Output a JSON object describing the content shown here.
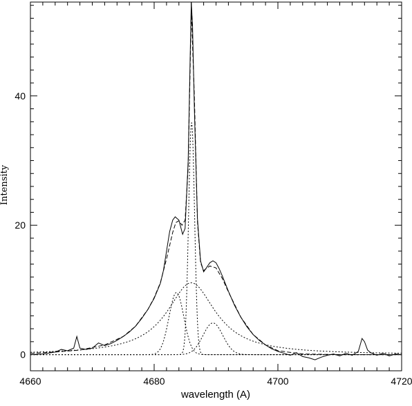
{
  "chart_data": {
    "type": "line",
    "title": "",
    "xlabel": "wavelength (A)",
    "ylabel": "Intensity",
    "xlim": [
      4660,
      4720
    ],
    "ylim": [
      -2.5,
      54.5
    ],
    "x_ticks": [
      4660,
      4680,
      4700,
      4720
    ],
    "x_tick_labels": [
      "4660",
      "4680",
      "4700",
      "4720"
    ],
    "y_ticks": [
      0,
      20,
      40
    ],
    "y_tick_labels": [
      "0",
      "20",
      "40"
    ],
    "x_minor_step": 2,
    "y_minor_step": 2,
    "grid": false,
    "legend": "none",
    "series": [
      {
        "style": "solid",
        "x": [
          4660,
          4662,
          4664,
          4665,
          4666,
          4667,
          4667.5,
          4668,
          4669,
          4670,
          4671,
          4672,
          4673,
          4674,
          4675,
          4676,
          4677,
          4678,
          4679,
          4680,
          4681,
          4681.5,
          4682,
          4682.5,
          4683,
          4683.4,
          4684,
          4684.6,
          4685,
          4685.5,
          4685.8,
          4686,
          4686.2,
          4686.5,
          4687,
          4687.5,
          4688,
          4688.5,
          4689,
          4689.5,
          4690,
          4690.5,
          4691,
          4692,
          4693,
          4694,
          4695,
          4696,
          4697,
          4698,
          4699,
          4700,
          4701,
          4702,
          4703,
          4704,
          4705,
          4706,
          4707,
          4708,
          4709,
          4710,
          4711,
          4712,
          4713,
          4713.6,
          4714,
          4714.5,
          4715,
          4716,
          4717,
          4718,
          4719,
          4720
        ],
        "y": [
          0.0,
          0.1,
          0.4,
          0.8,
          0.6,
          1.0,
          2.8,
          1.0,
          0.8,
          1.0,
          1.8,
          1.4,
          1.7,
          2.2,
          2.8,
          3.5,
          4.4,
          5.6,
          7.0,
          8.7,
          11.0,
          13.0,
          16.0,
          19.0,
          20.8,
          21.3,
          20.8,
          18.6,
          19.5,
          30.0,
          45.0,
          54.5,
          51.0,
          38.0,
          21.0,
          14.5,
          12.8,
          13.5,
          14.2,
          14.5,
          14.2,
          13.3,
          12.2,
          9.8,
          7.6,
          5.8,
          4.3,
          3.1,
          2.2,
          1.5,
          0.9,
          0.5,
          0.2,
          -0.1,
          0.3,
          -0.3,
          -0.5,
          -0.8,
          -0.4,
          -0.1,
          0.1,
          -0.2,
          0.2,
          -0.1,
          0.5,
          2.5,
          2.0,
          0.7,
          0.3,
          -0.1,
          0.2,
          -0.2,
          0.1,
          0.0
        ]
      },
      {
        "style": "dashed",
        "x": [
          4660,
          4664,
          4668,
          4672,
          4675,
          4677,
          4679,
          4680,
          4681,
          4682,
          4683,
          4683.5,
          4684,
          4684.5,
          4685,
          4685.5,
          4686,
          4686.5,
          4687,
          4687.5,
          4688,
          4689,
          4690,
          4691,
          4692,
          4694,
          4696,
          4698,
          4700,
          4704,
          4710,
          4716,
          4720
        ],
        "y": [
          0.2,
          0.4,
          0.7,
          1.5,
          2.8,
          4.4,
          7.0,
          8.8,
          11.1,
          14.8,
          18.9,
          20.4,
          20.7,
          20.0,
          20.8,
          29.0,
          53.2,
          40.0,
          20.5,
          14.2,
          13.0,
          13.7,
          13.4,
          11.8,
          9.7,
          5.8,
          3.1,
          1.5,
          0.6,
          0.1,
          0.0,
          0.0,
          0.0
        ]
      }
    ],
    "components": [
      {
        "type": "lorentzian",
        "center": 4686.0,
        "amplitude": 11.1,
        "hwhm": 4.8,
        "style": "dotted"
      },
      {
        "type": "gaussian",
        "center": 4683.6,
        "amplitude": 9.6,
        "sigma": 1.2,
        "style": "dotted"
      },
      {
        "type": "gaussian",
        "center": 4686.05,
        "amplitude": 36.0,
        "sigma": 0.48,
        "style": "dotted"
      },
      {
        "type": "gaussian",
        "center": 4689.5,
        "amplitude": 4.9,
        "sigma": 1.6,
        "style": "dotted"
      }
    ]
  }
}
